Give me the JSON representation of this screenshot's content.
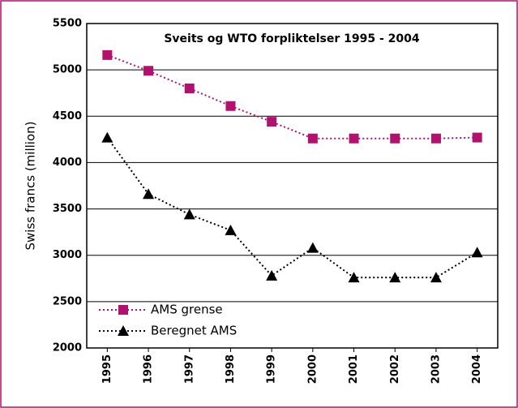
{
  "chart_data": {
    "type": "line",
    "title": "Sveits og WTO forpliktelser 1995 - 2004",
    "y_label": "Swiss francs (million)",
    "categories": [
      "1995",
      "1996",
      "1997",
      "1998",
      "1999",
      "2000",
      "2001",
      "2002",
      "2003",
      "2004"
    ],
    "series": [
      {
        "name": "AMS grense",
        "color": "#b0126e",
        "marker": "square",
        "values": [
          5160,
          4990,
          4800,
          4610,
          4440,
          4260,
          4260,
          4260,
          4260,
          4270
        ]
      },
      {
        "name": "Beregnet AMS",
        "color": "#000000",
        "marker": "triangle",
        "values": [
          4270,
          3660,
          3440,
          3270,
          2780,
          3080,
          2760,
          2760,
          2760,
          3030
        ]
      }
    ],
    "ylim": [
      2000,
      5500
    ],
    "yticks": [
      2000,
      2500,
      3000,
      3500,
      4000,
      4500,
      5000,
      5500
    ],
    "grid": true,
    "legend": "lower left"
  }
}
